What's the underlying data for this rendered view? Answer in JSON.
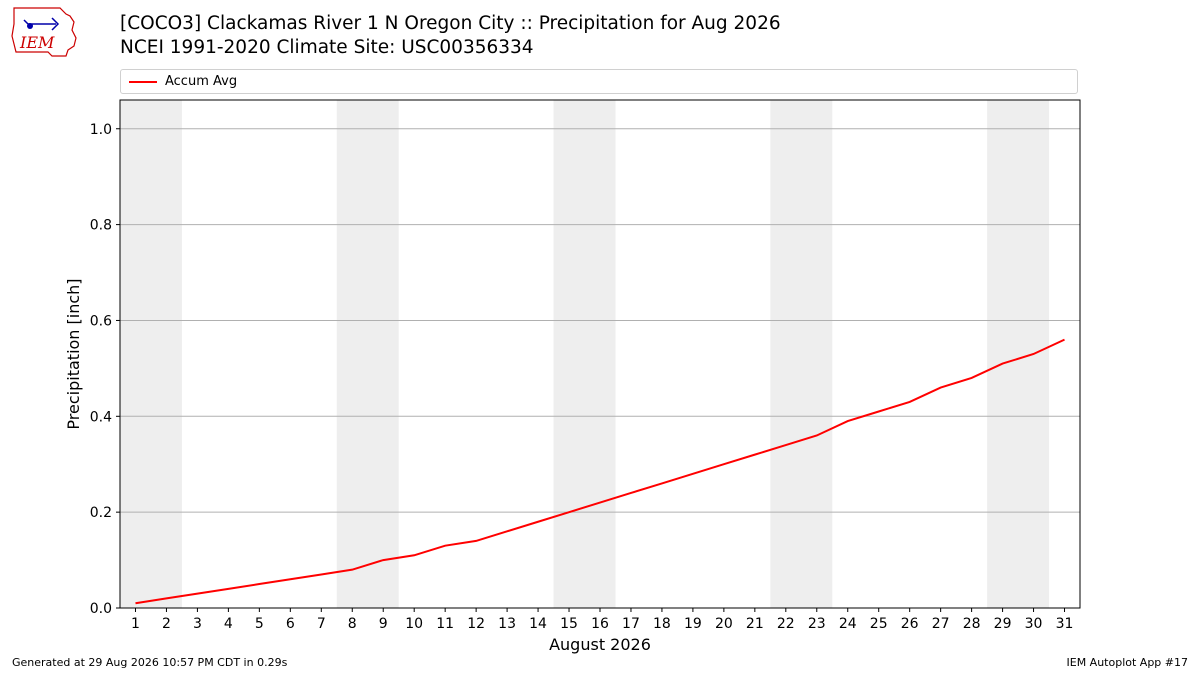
{
  "header": {
    "title_line1": "[COCO3] Clackamas River 1 N Oregon City :: Precipitation for Aug 2026",
    "title_line2": "NCEI 1991-2020 Climate Site: USC00356334",
    "logo_text": "IEM"
  },
  "legend": {
    "label": "Accum Avg"
  },
  "footer": {
    "generated": "Generated at 29 Aug 2026 10:57 PM CDT in 0.29s",
    "app": "IEM Autoplot App #17"
  },
  "colors": {
    "line": "#ff0000",
    "weekend_band": "#eeeeee",
    "grid": "#b0b0b0"
  },
  "chart_data": {
    "type": "line",
    "xlabel": "August 2026",
    "ylabel": "Precipitation [inch]",
    "xlim": [
      0.5,
      31.5
    ],
    "ylim": [
      0.0,
      1.06
    ],
    "x": [
      1,
      2,
      3,
      4,
      5,
      6,
      7,
      8,
      9,
      10,
      11,
      12,
      13,
      14,
      15,
      16,
      17,
      18,
      19,
      20,
      21,
      22,
      23,
      24,
      25,
      26,
      27,
      28,
      29,
      30,
      31
    ],
    "x_tick_labels": [
      "1",
      "2",
      "3",
      "4",
      "5",
      "6",
      "7",
      "8",
      "9",
      "10",
      "11",
      "12",
      "13",
      "14",
      "15",
      "16",
      "17",
      "18",
      "19",
      "20",
      "21",
      "22",
      "23",
      "24",
      "25",
      "26",
      "27",
      "28",
      "29",
      "30",
      "31"
    ],
    "y_ticks": [
      0.0,
      0.2,
      0.4,
      0.6,
      0.8,
      1.0
    ],
    "y_tick_labels": [
      "0.0",
      "0.2",
      "0.4",
      "0.6",
      "0.8",
      "1.0"
    ],
    "grid": "horizontal",
    "legend_position": "top",
    "weekend_bands": [
      [
        1,
        2
      ],
      [
        8,
        9
      ],
      [
        15,
        16
      ],
      [
        22,
        23
      ],
      [
        29,
        30
      ]
    ],
    "series": [
      {
        "name": "Accum Avg",
        "values": [
          0.01,
          0.02,
          0.03,
          0.04,
          0.05,
          0.06,
          0.07,
          0.08,
          0.1,
          0.11,
          0.13,
          0.14,
          0.16,
          0.18,
          0.2,
          0.22,
          0.24,
          0.26,
          0.28,
          0.3,
          0.32,
          0.34,
          0.36,
          0.39,
          0.41,
          0.43,
          0.46,
          0.48,
          0.51,
          0.53,
          0.56
        ]
      }
    ]
  }
}
